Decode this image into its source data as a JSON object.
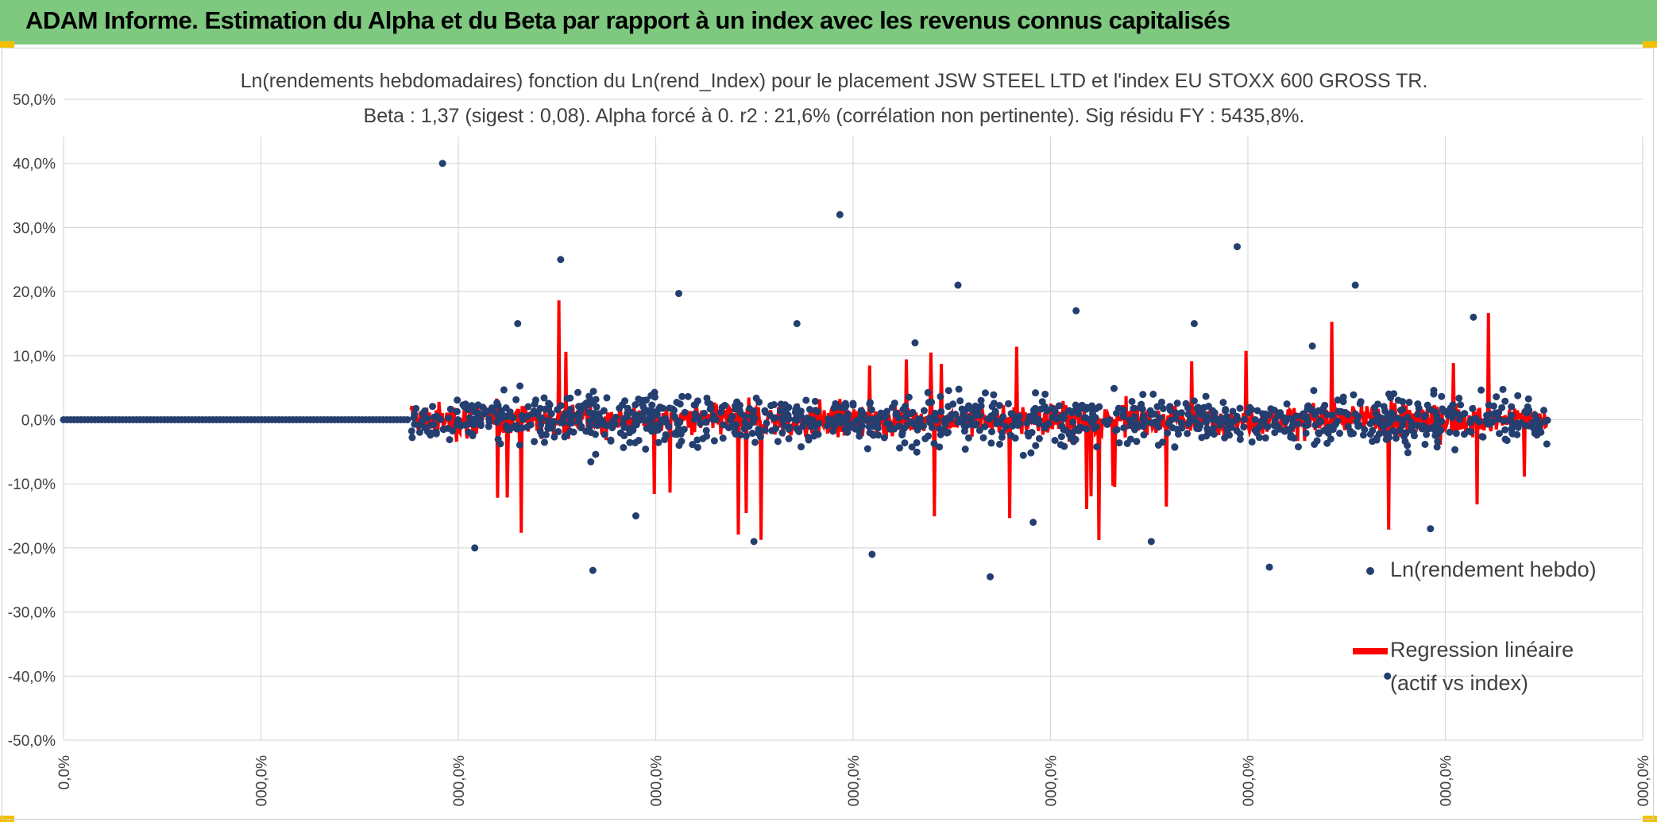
{
  "header": {
    "title": "ADAM Informe. Estimation du Alpha et du Beta par rapport à un index avec les revenus connus capitalisés"
  },
  "colors": {
    "header_bg": "#7ec97f",
    "corner": "#f2c000",
    "scatter": "#243f6f",
    "regression": "#ff0000",
    "grid": "#d9d9d9",
    "text": "#404040"
  },
  "chart_data": {
    "type": "scatter",
    "title": "Ln(rendements hebdomadaires) fonction du Ln(rend_Index) pour le placement JSW STEEL LTD et l'index EU STOXX 600 GROSS TR.",
    "subtitle": "Beta : 1,37 (sigest : 0,08). Alpha forcé à 0. r2 : 21,6% (corrélation non pertinente). Sig résidu FY : 5435,8%.",
    "y_ticks": [
      "50,0%",
      "40,0%",
      "30,0%",
      "20,0%",
      "10,0%",
      "0,0%",
      "-10,0%",
      "-20,0%",
      "-30,0%",
      "-40,0%",
      "-50,0%"
    ],
    "x_ticks": [
      "0,0%",
      "000,0%",
      "000,0%",
      "000,0%",
      "000,0%",
      "000,0%",
      "000,0%",
      "000,0%",
      "000,0%"
    ],
    "ylim": [
      -0.5,
      0.5
    ],
    "grid": true,
    "legend_position": "right",
    "series": [
      {
        "name": "Ln(rendement hebdo)",
        "kind": "markers",
        "color": "#243f6f"
      },
      {
        "name": "Regression linéaire (actif vs index)",
        "name_lines": [
          "Regression linéaire",
          "(actif vs index)"
        ],
        "kind": "line",
        "color": "#ff0000"
      }
    ],
    "series_description": {
      "flat_zero_segment_x": [
        0.0,
        0.22
      ],
      "active_segment_x": [
        0.22,
        0.94
      ],
      "typical_range": [
        -0.1,
        0.1
      ],
      "outliers_y": [
        0.4,
        0.32,
        0.27,
        0.25,
        0.21,
        0.21,
        0.197,
        0.17,
        0.16,
        0.15,
        0.15,
        0.15,
        0.12,
        0.115,
        -0.15,
        -0.16,
        -0.17,
        -0.19,
        -0.19,
        -0.2,
        -0.21,
        -0.23,
        -0.235,
        -0.245,
        -0.4
      ]
    }
  }
}
